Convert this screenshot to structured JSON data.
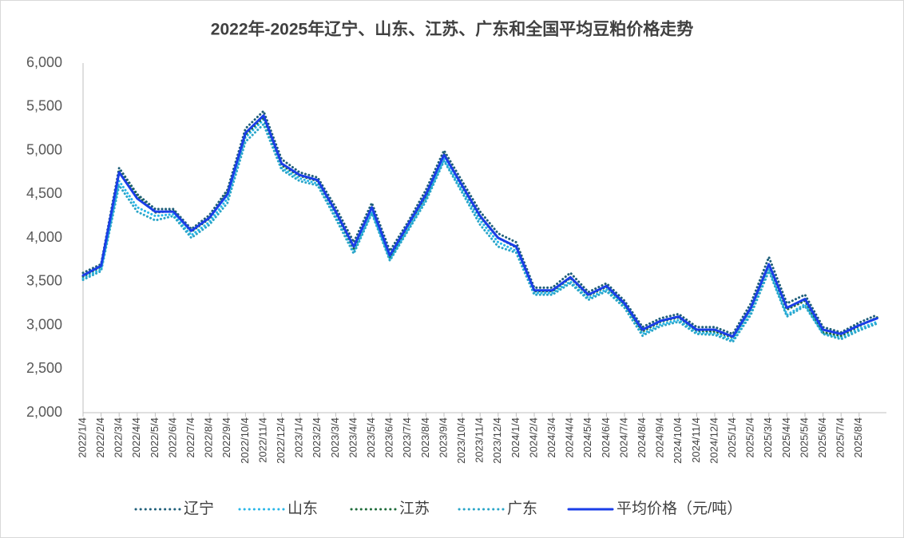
{
  "chart_data": {
    "type": "line",
    "title": "2022年-2025年辽宁、山东、江苏、广东和全国平均豆粕价格走势",
    "categories": [
      "2022/1/4",
      "2022/2/4",
      "2022/3/4",
      "2022/4/4",
      "2022/5/4",
      "2022/6/4",
      "2022/7/4",
      "2022/8/4",
      "2022/9/4",
      "2022/10/4",
      "2022/11/4",
      "2022/12/4",
      "2023/1/4",
      "2023/2/4",
      "2023/3/4",
      "2023/4/4",
      "2023/5/4",
      "2023/6/4",
      "2023/7/4",
      "2023/8/4",
      "2023/9/4",
      "2023/10/4",
      "2023/11/4",
      "2023/12/4",
      "2024/1/4",
      "2024/2/4",
      "2024/3/4",
      "2024/4/4",
      "2024/5/4",
      "2024/6/4",
      "2024/7/4",
      "2024/8/4",
      "2024/9/4",
      "2024/10/4",
      "2024/11/4",
      "2024/12/4",
      "2025/1/4",
      "2025/2/4",
      "2025/3/4",
      "2025/4/4",
      "2025/5/4",
      "2025/6/4",
      "2025/7/4",
      "2025/8/4",
      null
    ],
    "series": [
      {
        "name": "辽宁",
        "color": "#1f5f7a",
        "dash": "dot",
        "values": [
          3600,
          3700,
          4800,
          4500,
          4330,
          4330,
          4100,
          4260,
          4550,
          5250,
          5450,
          4900,
          4750,
          4690,
          4350,
          3950,
          4400,
          3850,
          4180,
          4550,
          5000,
          4650,
          4300,
          4050,
          3950,
          3430,
          3430,
          3600,
          3380,
          3480,
          3280,
          2980,
          3080,
          3130,
          2980,
          2980,
          2900,
          3250,
          3780,
          3250,
          3350,
          2980,
          2920,
          3030,
          3120
        ]
      },
      {
        "name": "山东",
        "color": "#29b6e8",
        "dash": "dot",
        "values": [
          3540,
          3640,
          4650,
          4350,
          4250,
          4270,
          4030,
          4180,
          4450,
          5150,
          5350,
          4800,
          4680,
          4620,
          4250,
          3850,
          4300,
          3760,
          4100,
          4450,
          4900,
          4550,
          4200,
          3950,
          3850,
          3370,
          3370,
          3500,
          3310,
          3410,
          3220,
          2900,
          3010,
          3060,
          2920,
          2910,
          2830,
          3150,
          3650,
          3120,
          3240,
          2910,
          2860,
          2960,
          3040
        ]
      },
      {
        "name": "江苏",
        "color": "#1e6b3a",
        "dash": "dot",
        "values": [
          3560,
          3670,
          4760,
          4480,
          4290,
          4310,
          4070,
          4220,
          4520,
          5180,
          5380,
          4830,
          4710,
          4650,
          4290,
          3880,
          4360,
          3780,
          4140,
          4480,
          4960,
          4590,
          4240,
          4000,
          3890,
          3390,
          3390,
          3540,
          3340,
          3440,
          3240,
          2930,
          3040,
          3090,
          2940,
          2930,
          2860,
          3190,
          3690,
          3180,
          3280,
          2920,
          2880,
          2990,
          3090
        ]
      },
      {
        "name": "广东",
        "color": "#2aa5c8",
        "dash": "dot",
        "values": [
          3520,
          3620,
          4600,
          4300,
          4200,
          4250,
          4000,
          4150,
          4400,
          5100,
          5300,
          4780,
          4650,
          4600,
          4220,
          3820,
          4280,
          3740,
          4080,
          4420,
          4880,
          4520,
          4150,
          3900,
          3830,
          3350,
          3350,
          3480,
          3290,
          3390,
          3200,
          2880,
          2990,
          3040,
          2900,
          2890,
          2810,
          3120,
          3620,
          3100,
          3220,
          2900,
          2840,
          2940,
          3020
        ]
      },
      {
        "name": "平均价格（元/吨）",
        "color": "#1a3ee8",
        "dash": "solid",
        "values": [
          3570,
          3680,
          4750,
          4450,
          4300,
          4300,
          4080,
          4230,
          4500,
          5200,
          5400,
          4850,
          4720,
          4660,
          4300,
          3900,
          4350,
          3800,
          4150,
          4500,
          4950,
          4600,
          4250,
          4000,
          3900,
          3400,
          3400,
          3550,
          3350,
          3450,
          3250,
          2950,
          3050,
          3100,
          2950,
          2950,
          2870,
          3200,
          3700,
          3200,
          3300,
          2950,
          2900,
          3000,
          3080
        ]
      }
    ],
    "ylim": [
      2000,
      6000
    ],
    "yticks": [
      {
        "value": 2000,
        "label": "2,000"
      },
      {
        "value": 2500,
        "label": "2,500"
      },
      {
        "value": 3000,
        "label": "3,000"
      },
      {
        "value": 3500,
        "label": "3,500"
      },
      {
        "value": 4000,
        "label": "4,000"
      },
      {
        "value": 4500,
        "label": "4,500"
      },
      {
        "value": 5000,
        "label": "5,000"
      },
      {
        "value": 5500,
        "label": "5,500"
      },
      {
        "value": 6000,
        "label": "6,000"
      }
    ],
    "grid": false,
    "legend": "bottom"
  }
}
